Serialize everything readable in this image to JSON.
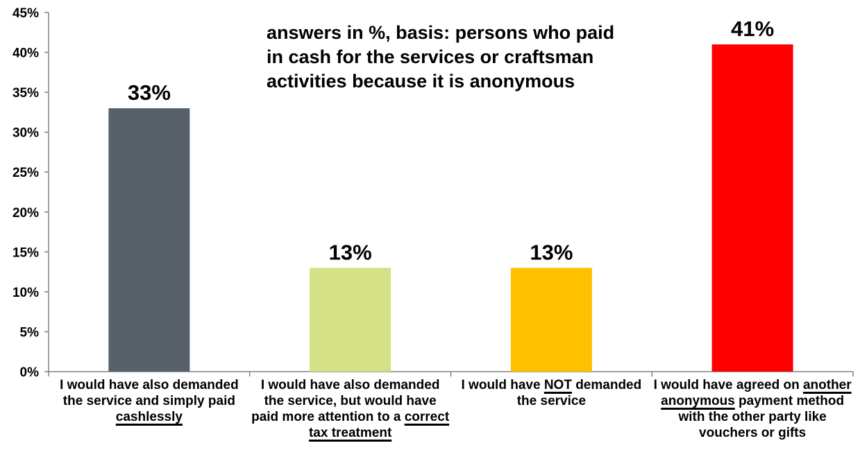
{
  "chart_data": {
    "type": "bar",
    "title": "",
    "xlabel": "",
    "ylabel": "",
    "ylim": [
      0,
      45
    ],
    "yticks": [
      "0%",
      "5%",
      "10%",
      "15%",
      "20%",
      "25%",
      "30%",
      "35%",
      "40%",
      "45%"
    ],
    "grid": false,
    "legend": "none",
    "annotation": "answers in %, basis: persons who paid in cash for the services or craftsman activities because it is anonymous",
    "categories": [
      {
        "parts": [
          {
            "text": "I would have also demanded the service and simply paid ",
            "underline": false
          },
          {
            "text": "cashlessly",
            "underline": true
          }
        ]
      },
      {
        "parts": [
          {
            "text": "I would have also demanded the service, but would have paid more attention to a ",
            "underline": false
          },
          {
            "text": "correct tax treatment",
            "underline": true
          }
        ]
      },
      {
        "parts": [
          {
            "text": "I would have ",
            "underline": false
          },
          {
            "text": "NOT",
            "underline": true
          },
          {
            "text": " demanded the service",
            "underline": false
          }
        ]
      },
      {
        "parts": [
          {
            "text": "I would have agreed on ",
            "underline": false
          },
          {
            "text": "another anonymous",
            "underline": true
          },
          {
            "text": " payment method with the other party like vouchers or gifts",
            "underline": false
          }
        ]
      }
    ],
    "values": [
      33,
      13,
      13,
      41
    ],
    "data_labels": [
      "33%",
      "13%",
      "13%",
      "41%"
    ],
    "colors": [
      "#58616a",
      "#d4e184",
      "#ffc000",
      "#ff0000"
    ]
  }
}
